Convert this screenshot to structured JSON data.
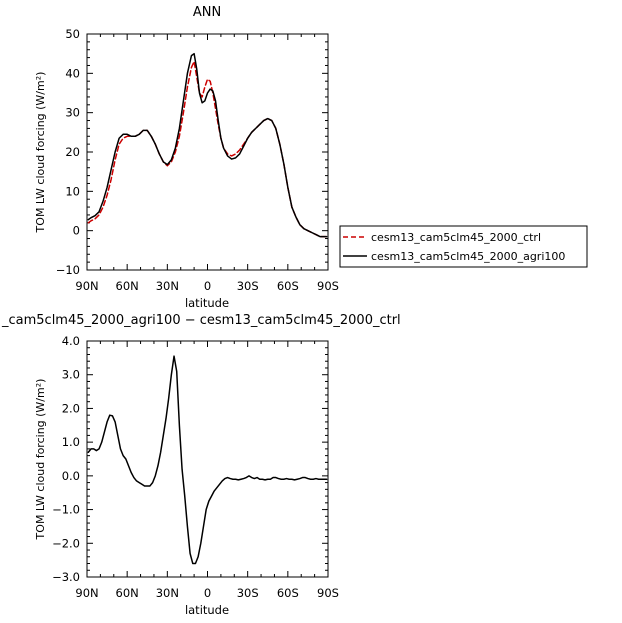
{
  "chart_data": [
    {
      "type": "line",
      "title": "ANN",
      "xlabel": "latitude",
      "ylabel": "TOM LW cloud forcing (W/m²)",
      "xlim": [
        90,
        -90
      ],
      "ylim": [
        -10,
        50
      ],
      "x_ticks": [
        {
          "value": 90,
          "label": "90N"
        },
        {
          "value": 60,
          "label": "60N"
        },
        {
          "value": 30,
          "label": "30N"
        },
        {
          "value": 0,
          "label": "0"
        },
        {
          "value": -30,
          "label": "30S"
        },
        {
          "value": -60,
          "label": "60S"
        },
        {
          "value": -90,
          "label": "90S"
        }
      ],
      "y_ticks": [
        {
          "value": -10,
          "label": "−10"
        },
        {
          "value": 0,
          "label": "0"
        },
        {
          "value": 10,
          "label": "10"
        },
        {
          "value": 20,
          "label": "20"
        },
        {
          "value": 30,
          "label": "30"
        },
        {
          "value": 40,
          "label": "40"
        },
        {
          "value": 50,
          "label": "50"
        }
      ],
      "legend_position": "right",
      "grid": false,
      "series": [
        {
          "name": "cesm13_cam5clm45_2000_ctrl",
          "color": "#cc0000",
          "dash": "dashed",
          "x": [
            89,
            87,
            84,
            81,
            78,
            75,
            72,
            69,
            66,
            63,
            60,
            57,
            54,
            51,
            48,
            45,
            42,
            39,
            36,
            33,
            30,
            27,
            24,
            21,
            18,
            15,
            12,
            10,
            8,
            6,
            4,
            2,
            0,
            -2,
            -4,
            -6,
            -8,
            -10,
            -12,
            -15,
            -18,
            -21,
            -24,
            -27,
            -30,
            -33,
            -36,
            -39,
            -42,
            -45,
            -48,
            -51,
            -54,
            -57,
            -60,
            -63,
            -66,
            -69,
            -72,
            -75,
            -78,
            -81,
            -84,
            -87,
            -89
          ],
          "y": [
            2,
            2.5,
            3,
            4,
            6,
            9,
            13,
            18,
            22,
            23.5,
            24,
            24,
            24,
            24.5,
            25.5,
            25.5,
            24,
            22,
            19.5,
            17.5,
            16.5,
            17.5,
            20,
            24,
            30,
            36.5,
            41.5,
            43,
            39,
            35,
            34,
            36.5,
            38.5,
            38,
            35,
            31,
            27,
            23.5,
            21,
            19.5,
            19,
            19.5,
            20.5,
            22,
            23.5,
            25,
            26,
            27,
            28,
            28.5,
            28,
            26,
            22,
            17,
            11,
            6,
            3.5,
            1.5,
            0.5,
            0,
            -0.5,
            -1,
            -1.5,
            -1.5,
            -1.5
          ]
        },
        {
          "name": "cesm13_cam5clm45_2000_agri100",
          "color": "#000000",
          "dash": "solid",
          "x": [
            89,
            87,
            84,
            81,
            78,
            75,
            72,
            69,
            66,
            63,
            60,
            57,
            54,
            51,
            48,
            45,
            42,
            39,
            36,
            33,
            30,
            27,
            24,
            21,
            18,
            15,
            12,
            10,
            8,
            6,
            4,
            2,
            0,
            -2,
            -4,
            -6,
            -8,
            -10,
            -12,
            -15,
            -18,
            -21,
            -24,
            -27,
            -30,
            -33,
            -36,
            -39,
            -42,
            -45,
            -48,
            -51,
            -54,
            -57,
            -60,
            -63,
            -66,
            -69,
            -72,
            -75,
            -78,
            -81,
            -84,
            -87,
            -89
          ],
          "y": [
            2.8,
            3.3,
            3.8,
            4.8,
            7.5,
            11,
            15.5,
            20,
            23.5,
            24.5,
            24.5,
            24,
            24,
            24.5,
            25.5,
            25.5,
            24,
            22,
            19.5,
            17.5,
            16.8,
            18,
            21,
            26,
            33,
            40,
            44.5,
            45,
            41,
            35,
            32.5,
            33,
            35,
            36,
            35.5,
            33,
            28,
            23.5,
            21,
            19,
            18.2,
            18.5,
            19.5,
            21.5,
            23.5,
            25,
            26,
            27,
            28,
            28.5,
            28,
            26,
            22,
            17,
            11,
            6,
            3.5,
            1.5,
            0.5,
            0,
            -0.5,
            -1,
            -1.5,
            -1.5,
            -1.5
          ]
        }
      ]
    },
    {
      "type": "line",
      "title": "_cam5clm45_2000_agri100 − cesm13_cam5clm45_2000_ctrl",
      "xlabel": "latitude",
      "ylabel": "TOM LW cloud forcing (W/m²)",
      "xlim": [
        90,
        -90
      ],
      "ylim": [
        -3,
        4
      ],
      "x_ticks": [
        {
          "value": 90,
          "label": "90N"
        },
        {
          "value": 60,
          "label": "60N"
        },
        {
          "value": 30,
          "label": "30N"
        },
        {
          "value": 0,
          "label": "0"
        },
        {
          "value": -30,
          "label": "30S"
        },
        {
          "value": -60,
          "label": "60S"
        },
        {
          "value": -90,
          "label": "90S"
        }
      ],
      "y_ticks": [
        {
          "value": -3,
          "label": "−3.0"
        },
        {
          "value": -2,
          "label": "−2.0"
        },
        {
          "value": -1,
          "label": "−1.0"
        },
        {
          "value": 0,
          "label": "0.0"
        },
        {
          "value": 1,
          "label": "1.0"
        },
        {
          "value": 2,
          "label": "2.0"
        },
        {
          "value": 3,
          "label": "3.0"
        },
        {
          "value": 4,
          "label": "4.0"
        }
      ],
      "grid": false,
      "series": [
        {
          "color": "#000000",
          "dash": "solid",
          "x": [
            89,
            87,
            85,
            83,
            81,
            79,
            77,
            75,
            73,
            71,
            69,
            67,
            65,
            63,
            61,
            59,
            57,
            55,
            53,
            51,
            49,
            47,
            45,
            43,
            41,
            39,
            37,
            35,
            33,
            31,
            29,
            27,
            25,
            23,
            21,
            19,
            17,
            15,
            13,
            11,
            9,
            7,
            5,
            3,
            1,
            -1,
            -3,
            -5,
            -7,
            -9,
            -11,
            -13,
            -15,
            -17,
            -19,
            -21,
            -23,
            -25,
            -27,
            -29,
            -31,
            -33,
            -35,
            -37,
            -39,
            -41,
            -43,
            -45,
            -47,
            -49,
            -51,
            -53,
            -55,
            -57,
            -59,
            -61,
            -63,
            -65,
            -67,
            -69,
            -71,
            -73,
            -75,
            -77,
            -79,
            -81,
            -83,
            -85,
            -87,
            -89
          ],
          "y": [
            0.7,
            0.8,
            0.8,
            0.75,
            0.8,
            1.0,
            1.3,
            1.6,
            1.8,
            1.78,
            1.6,
            1.2,
            0.8,
            0.6,
            0.5,
            0.3,
            0.1,
            -0.05,
            -0.15,
            -0.2,
            -0.25,
            -0.3,
            -0.3,
            -0.3,
            -0.2,
            0.0,
            0.3,
            0.7,
            1.2,
            1.7,
            2.3,
            3.0,
            3.55,
            3.1,
            1.5,
            0.2,
            -0.6,
            -1.5,
            -2.3,
            -2.6,
            -2.6,
            -2.4,
            -2.0,
            -1.5,
            -1.0,
            -0.75,
            -0.6,
            -0.45,
            -0.35,
            -0.25,
            -0.15,
            -0.08,
            -0.05,
            -0.08,
            -0.1,
            -0.1,
            -0.12,
            -0.1,
            -0.08,
            -0.05,
            0.0,
            -0.05,
            -0.08,
            -0.05,
            -0.1,
            -0.1,
            -0.12,
            -0.1,
            -0.1,
            -0.05,
            -0.05,
            -0.08,
            -0.1,
            -0.1,
            -0.08,
            -0.1,
            -0.1,
            -0.12,
            -0.1,
            -0.08,
            -0.05,
            -0.05,
            -0.08,
            -0.1,
            -0.1,
            -0.08,
            -0.1,
            -0.1,
            -0.1,
            -0.1
          ]
        }
      ]
    }
  ]
}
